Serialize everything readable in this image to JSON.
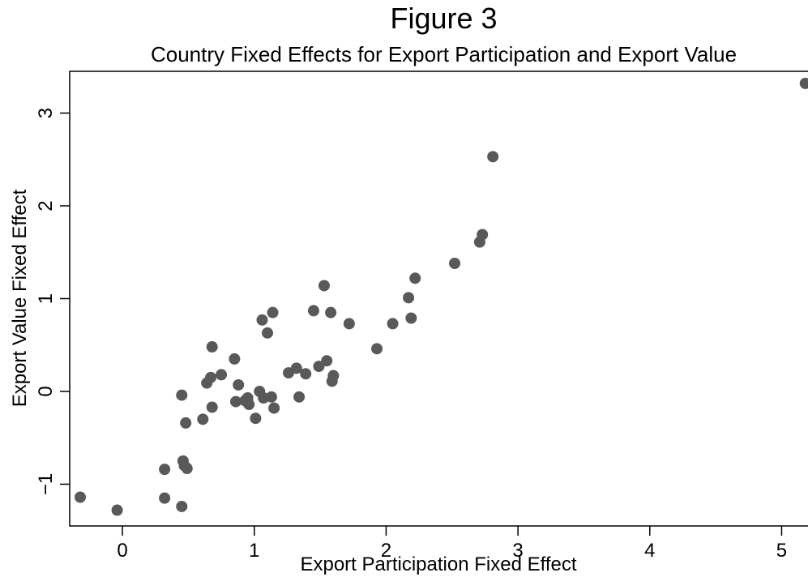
{
  "figure_title": "Figure 3",
  "chart_data": {
    "type": "scatter",
    "title": "Country Fixed Effects for Export Participation and Export Value",
    "xlabel": "Export Participation Fixed Effect",
    "ylabel": "Export Value Fixed Effect",
    "xlim": [
      -0.4,
      5.2
    ],
    "ylim": [
      -1.45,
      3.45
    ],
    "xticks": [
      0,
      1,
      2,
      3,
      4,
      5
    ],
    "xtick_labels": [
      "0",
      "1",
      "2",
      "3",
      "4",
      "5"
    ],
    "yticks": [
      -1,
      0,
      1,
      2,
      3
    ],
    "ytick_labels": [
      "−1",
      "0",
      "1",
      "2",
      "3"
    ],
    "grid": false,
    "marker_color": "#595959",
    "points": [
      {
        "x": -0.32,
        "y": -1.14
      },
      {
        "x": -0.04,
        "y": -1.28
      },
      {
        "x": 0.32,
        "y": -0.84
      },
      {
        "x": 0.32,
        "y": -1.15
      },
      {
        "x": 0.45,
        "y": -1.24
      },
      {
        "x": 0.45,
        "y": -0.04
      },
      {
        "x": 0.46,
        "y": -0.75
      },
      {
        "x": 0.47,
        "y": -0.8
      },
      {
        "x": 0.48,
        "y": -0.34
      },
      {
        "x": 0.49,
        "y": -0.83
      },
      {
        "x": 0.61,
        "y": -0.3
      },
      {
        "x": 0.64,
        "y": 0.09
      },
      {
        "x": 0.67,
        "y": 0.15
      },
      {
        "x": 0.68,
        "y": 0.48
      },
      {
        "x": 0.68,
        "y": -0.17
      },
      {
        "x": 0.75,
        "y": 0.18
      },
      {
        "x": 0.85,
        "y": 0.35
      },
      {
        "x": 0.86,
        "y": -0.11
      },
      {
        "x": 0.88,
        "y": 0.07
      },
      {
        "x": 0.93,
        "y": -0.1
      },
      {
        "x": 0.95,
        "y": -0.07
      },
      {
        "x": 0.96,
        "y": -0.14
      },
      {
        "x": 1.01,
        "y": -0.29
      },
      {
        "x": 1.04,
        "y": 0.0
      },
      {
        "x": 1.06,
        "y": 0.77
      },
      {
        "x": 1.07,
        "y": -0.07
      },
      {
        "x": 1.1,
        "y": 0.63
      },
      {
        "x": 1.13,
        "y": -0.06
      },
      {
        "x": 1.14,
        "y": 0.85
      },
      {
        "x": 1.15,
        "y": -0.18
      },
      {
        "x": 1.26,
        "y": 0.2
      },
      {
        "x": 1.32,
        "y": 0.25
      },
      {
        "x": 1.34,
        "y": -0.06
      },
      {
        "x": 1.39,
        "y": 0.19
      },
      {
        "x": 1.45,
        "y": 0.87
      },
      {
        "x": 1.49,
        "y": 0.27
      },
      {
        "x": 1.53,
        "y": 1.14
      },
      {
        "x": 1.55,
        "y": 0.33
      },
      {
        "x": 1.58,
        "y": 0.85
      },
      {
        "x": 1.59,
        "y": 0.11
      },
      {
        "x": 1.6,
        "y": 0.17
      },
      {
        "x": 1.72,
        "y": 0.73
      },
      {
        "x": 1.93,
        "y": 0.46
      },
      {
        "x": 2.05,
        "y": 0.73
      },
      {
        "x": 2.17,
        "y": 1.01
      },
      {
        "x": 2.19,
        "y": 0.79
      },
      {
        "x": 2.22,
        "y": 1.22
      },
      {
        "x": 2.52,
        "y": 1.38
      },
      {
        "x": 2.71,
        "y": 1.61
      },
      {
        "x": 2.73,
        "y": 1.69
      },
      {
        "x": 2.81,
        "y": 2.53
      },
      {
        "x": 5.18,
        "y": 3.32
      }
    ]
  }
}
